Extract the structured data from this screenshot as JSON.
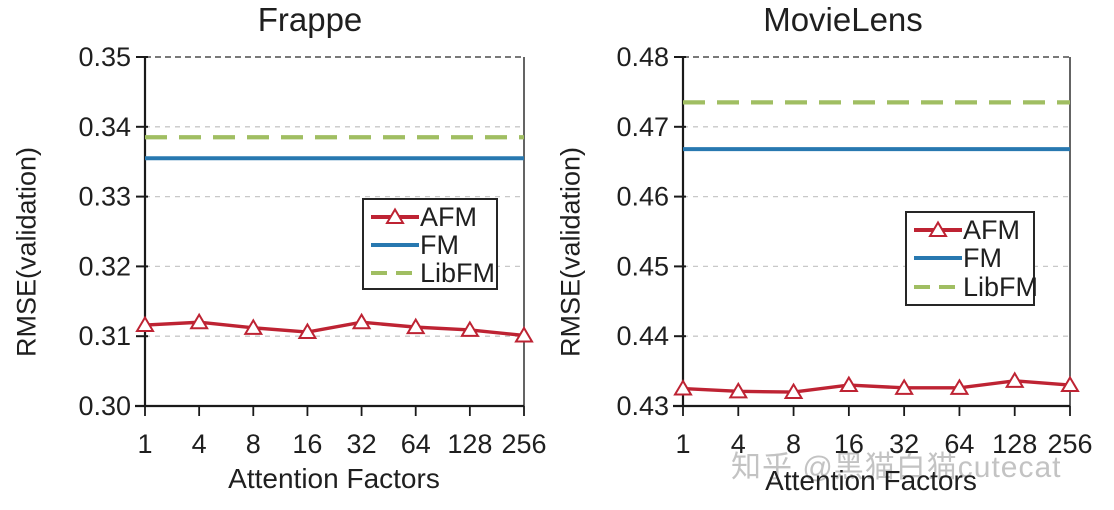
{
  "page": {
    "background": "#ffffff",
    "watermark": "知乎 @黑猫白猫cutecat"
  },
  "style": {
    "axis_color": "#1a1a1a",
    "grid_color": "#c8c8c8",
    "top_grid_color": "#4d4d4d",
    "right_border_color": "#3d3d3d",
    "text_color": "#1f1f1f",
    "marker_fill": "#ffffff"
  },
  "chart_data": [
    {
      "type": "line",
      "title": "Frappe",
      "xlabel": "Attention Factors",
      "ylabel": "RMSE(validation)",
      "categories": [
        "1",
        "4",
        "8",
        "16",
        "32",
        "64",
        "128",
        "256"
      ],
      "ylim": [
        0.3,
        0.35
      ],
      "ytick_step": 0.01,
      "ytick_decimals": 2,
      "grid": "horizontal-dashed",
      "legend_position": "inside-center-right",
      "series": [
        {
          "name": "AFM",
          "color": "#BE2333",
          "style": "solid",
          "marker": "open-triangle",
          "values": [
            0.3116,
            0.312,
            0.3112,
            0.3106,
            0.312,
            0.3113,
            0.3109,
            0.3101
          ]
        },
        {
          "name": "FM",
          "color": "#2878B0",
          "style": "solid",
          "marker": "none",
          "values": [
            0.3355,
            0.3355,
            0.3355,
            0.3355,
            0.3355,
            0.3355,
            0.3355,
            0.3355
          ]
        },
        {
          "name": "LibFM",
          "color": "#A0BE62",
          "style": "dashed",
          "marker": "none",
          "values": [
            0.3385,
            0.3385,
            0.3385,
            0.3385,
            0.3385,
            0.3385,
            0.3385,
            0.3385
          ]
        }
      ]
    },
    {
      "type": "line",
      "title": "MovieLens",
      "xlabel": "Attention Factors",
      "ylabel": "RMSE(validation)",
      "categories": [
        "1",
        "4",
        "8",
        "16",
        "32",
        "64",
        "128",
        "256"
      ],
      "ylim": [
        0.43,
        0.48
      ],
      "ytick_step": 0.01,
      "ytick_decimals": 2,
      "grid": "horizontal-dashed",
      "legend_position": "inside-center-right",
      "series": [
        {
          "name": "AFM",
          "color": "#BE2333",
          "style": "solid",
          "marker": "open-triangle",
          "values": [
            0.4325,
            0.4321,
            0.432,
            0.433,
            0.4326,
            0.4326,
            0.4336,
            0.433
          ]
        },
        {
          "name": "FM",
          "color": "#2878B0",
          "style": "solid",
          "marker": "none",
          "values": [
            0.4668,
            0.4668,
            0.4668,
            0.4668,
            0.4668,
            0.4668,
            0.4668,
            0.4668
          ]
        },
        {
          "name": "LibFM",
          "color": "#A0BE62",
          "style": "dashed",
          "marker": "none",
          "values": [
            0.4735,
            0.4735,
            0.4735,
            0.4735,
            0.4735,
            0.4735,
            0.4735,
            0.4735
          ]
        }
      ]
    }
  ]
}
